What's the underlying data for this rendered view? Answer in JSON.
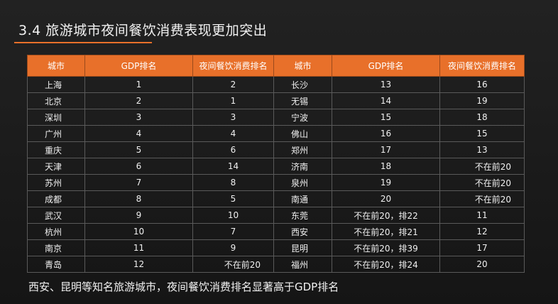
{
  "title": "3.4 旅游城市夜间餐饮消费表现更加突出",
  "headers": [
    "城市",
    "GDP排名",
    "夜间餐饮消费排名",
    "城市",
    "GDP排名",
    "夜间餐饮消费排名"
  ],
  "rows": [
    [
      "上海",
      "1",
      "2",
      "长沙",
      "13",
      "16"
    ],
    [
      "北京",
      "2",
      "1",
      "无锡",
      "14",
      "19"
    ],
    [
      "深圳",
      "3",
      "3",
      "宁波",
      "15",
      "18"
    ],
    [
      "广州",
      "4",
      "4",
      "佛山",
      "16",
      "15"
    ],
    [
      "重庆",
      "5",
      "6",
      "郑州",
      "17",
      "13"
    ],
    [
      "天津",
      "6",
      "14",
      "济南",
      "18",
      "不在前20"
    ],
    [
      "苏州",
      "7",
      "8",
      "泉州",
      "19",
      "不在前20"
    ],
    [
      "成都",
      "8",
      "5",
      "南通",
      "20",
      "不在前20"
    ],
    [
      "武汉",
      "9",
      "10",
      "东莞",
      "不在前20，排22",
      "11"
    ],
    [
      "杭州",
      "10",
      "7",
      "西安",
      "不在前20，排21",
      "12"
    ],
    [
      "南京",
      "11",
      "9",
      "昆明",
      "不在前20，排39",
      "17"
    ],
    [
      "青岛",
      "12",
      "不在前20",
      "福州",
      "不在前20，排24",
      "20"
    ]
  ],
  "footnote": "西安、昆明等知名旅游城市，夜间餐饮消费排名显著高于GDP排名",
  "colors": {
    "accent": "#e8702a",
    "background": "#1c1c1c"
  }
}
